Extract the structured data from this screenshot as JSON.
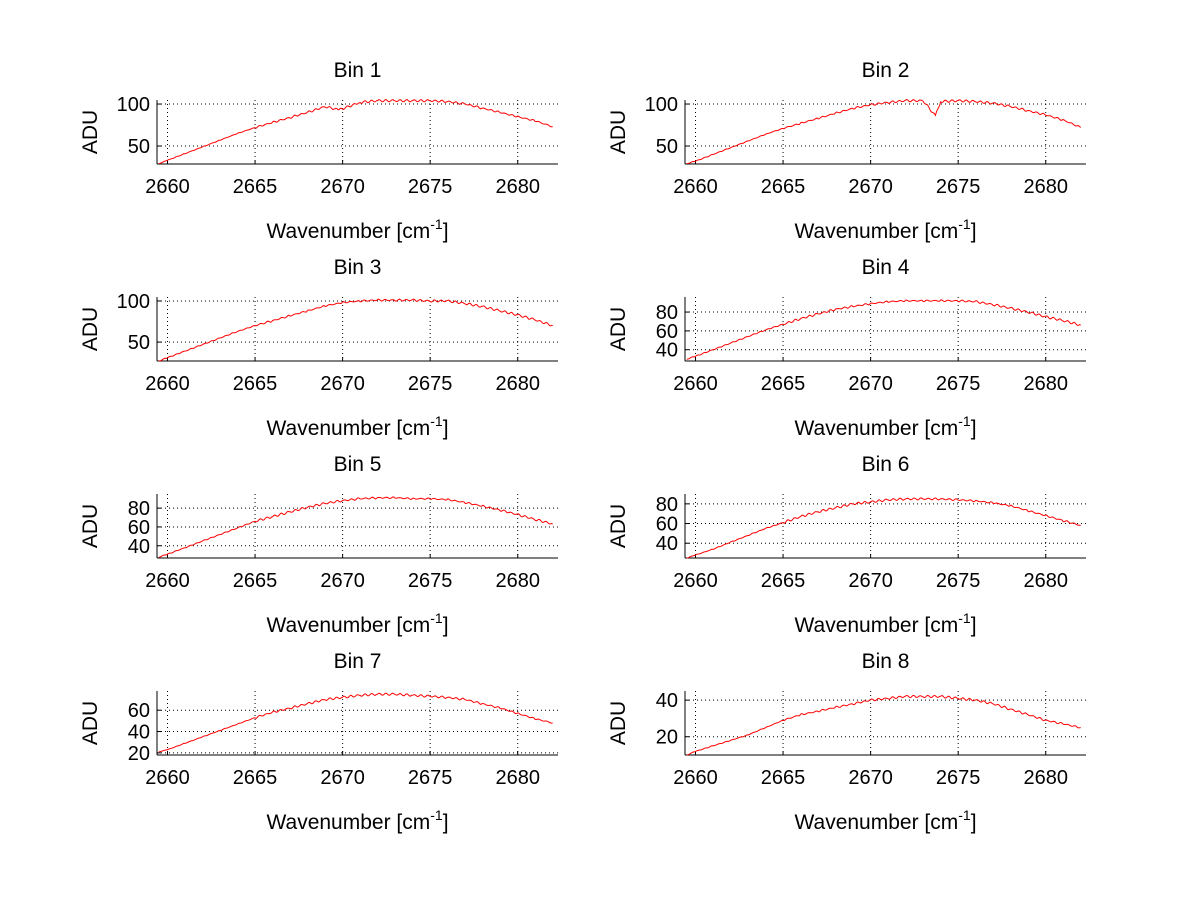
{
  "chart_data": [
    {
      "type": "line",
      "title": "Bin 1",
      "xlabel": "Wavenumber [cm",
      "xlabel_sup": "-1",
      "xlabel_end": "]",
      "ylabel": "ADU",
      "xlim": [
        2659.4,
        2682.3
      ],
      "ylim": [
        28.6,
        104.8
      ],
      "xticks": [
        2660,
        2665,
        2670,
        2675,
        2680
      ],
      "yticks": [
        50,
        100
      ],
      "grid": true,
      "color": "#ff0000",
      "x": [
        2659.5,
        2660,
        2661,
        2662,
        2663,
        2664,
        2665,
        2666,
        2667,
        2668,
        2669,
        2669.8,
        2671,
        2672,
        2673,
        2674,
        2675,
        2676,
        2677,
        2678,
        2679,
        2680,
        2681,
        2682
      ],
      "values": [
        29,
        33,
        41,
        49,
        57,
        65,
        72,
        78,
        84,
        90,
        97,
        93,
        102,
        104,
        104,
        104,
        104,
        103,
        100,
        95,
        90,
        85,
        80,
        73
      ]
    },
    {
      "type": "line",
      "title": "Bin 2",
      "xlabel": "Wavenumber [cm",
      "xlabel_sup": "-1",
      "xlabel_end": "]",
      "ylabel": "ADU",
      "xlim": [
        2659.4,
        2682.3
      ],
      "ylim": [
        28.6,
        104.8
      ],
      "xticks": [
        2660,
        2665,
        2670,
        2675,
        2680
      ],
      "yticks": [
        50,
        100
      ],
      "grid": true,
      "color": "#ff0000",
      "x": [
        2659.5,
        2660,
        2661,
        2662,
        2663,
        2664,
        2665,
        2666,
        2667,
        2668,
        2669,
        2670,
        2671,
        2672,
        2673,
        2673.7,
        2674,
        2675,
        2676,
        2677,
        2678,
        2679,
        2680,
        2681,
        2682
      ],
      "values": [
        29,
        32,
        40,
        48,
        56,
        64,
        71,
        77,
        83,
        89,
        95,
        99,
        102,
        104,
        104,
        86,
        103,
        104,
        103,
        101,
        97,
        92,
        87,
        81,
        72
      ]
    },
    {
      "type": "line",
      "title": "Bin 3",
      "xlabel": "Wavenumber [cm",
      "xlabel_sup": "-1",
      "xlabel_end": "]",
      "ylabel": "ADU",
      "xlim": [
        2659.4,
        2682.3
      ],
      "ylim": [
        27,
        104.8
      ],
      "xticks": [
        2660,
        2665,
        2670,
        2675,
        2680
      ],
      "yticks": [
        50,
        100
      ],
      "grid": true,
      "color": "#ff0000",
      "x": [
        2659.5,
        2660,
        2661,
        2662,
        2663,
        2664,
        2665,
        2666,
        2667,
        2668,
        2669,
        2670,
        2671,
        2672,
        2673,
        2674,
        2675,
        2676,
        2677,
        2678,
        2679,
        2680,
        2681,
        2682
      ],
      "values": [
        27,
        31,
        39,
        47,
        55,
        63,
        70,
        76,
        82,
        88,
        94,
        98,
        100,
        101,
        101,
        101,
        100,
        100,
        97,
        93,
        88,
        83,
        77,
        70
      ]
    },
    {
      "type": "line",
      "title": "Bin 4",
      "xlabel": "Wavenumber [cm",
      "xlabel_sup": "-1",
      "xlabel_end": "]",
      "ylabel": "ADU",
      "xlim": [
        2659.4,
        2682.3
      ],
      "ylim": [
        28,
        96
      ],
      "xticks": [
        2660,
        2665,
        2670,
        2675,
        2680
      ],
      "yticks": [
        40,
        60,
        80
      ],
      "grid": true,
      "color": "#ff0000",
      "x": [
        2659.5,
        2660,
        2661,
        2662,
        2663,
        2664,
        2665,
        2666,
        2667,
        2668,
        2669,
        2670,
        2671,
        2672,
        2673,
        2674,
        2675,
        2676,
        2677,
        2678,
        2679,
        2680,
        2681,
        2682
      ],
      "values": [
        30,
        33,
        40,
        47,
        54,
        61,
        67,
        73,
        78,
        83,
        86,
        89,
        91,
        92,
        92,
        92,
        92,
        91,
        88,
        84,
        80,
        75,
        71,
        66
      ]
    },
    {
      "type": "line",
      "title": "Bin 5",
      "xlabel": "Wavenumber [cm",
      "xlabel_sup": "-1",
      "xlabel_end": "]",
      "ylabel": "ADU",
      "xlim": [
        2659.4,
        2682.3
      ],
      "ylim": [
        27,
        95
      ],
      "xticks": [
        2660,
        2665,
        2670,
        2675,
        2680
      ],
      "yticks": [
        40,
        60,
        80
      ],
      "grid": true,
      "color": "#ff0000",
      "x": [
        2659.5,
        2660,
        2661,
        2662,
        2663,
        2664,
        2665,
        2666,
        2667,
        2668,
        2669,
        2670,
        2671,
        2672,
        2673,
        2674,
        2675,
        2676,
        2677,
        2678,
        2679,
        2680,
        2681,
        2682
      ],
      "values": [
        28,
        31,
        38,
        45,
        52,
        59,
        66,
        71,
        76,
        81,
        85,
        88,
        90,
        91,
        91,
        90,
        90,
        89,
        86,
        82,
        78,
        73,
        68,
        63
      ]
    },
    {
      "type": "line",
      "title": "Bin 6",
      "xlabel": "Wavenumber [cm",
      "xlabel_sup": "-1",
      "xlabel_end": "]",
      "ylabel": "ADU",
      "xlim": [
        2659.4,
        2682.3
      ],
      "ylim": [
        25,
        90
      ],
      "xticks": [
        2660,
        2665,
        2670,
        2675,
        2680
      ],
      "yticks": [
        40,
        60,
        80
      ],
      "grid": true,
      "color": "#ff0000",
      "x": [
        2659.5,
        2660,
        2661,
        2662,
        2663,
        2664,
        2665,
        2666,
        2667,
        2668,
        2669,
        2670,
        2671,
        2672,
        2673,
        2674,
        2675,
        2676,
        2677,
        2678,
        2679,
        2680,
        2681,
        2682
      ],
      "values": [
        25,
        28,
        34,
        41,
        48,
        55,
        61,
        67,
        72,
        76,
        80,
        82,
        84,
        85,
        85,
        85,
        84,
        83,
        81,
        78,
        73,
        68,
        63,
        58
      ]
    },
    {
      "type": "line",
      "title": "Bin 7",
      "xlabel": "Wavenumber [cm",
      "xlabel_sup": "-1",
      "xlabel_end": "]",
      "ylabel": "ADU",
      "xlim": [
        2659.4,
        2682.3
      ],
      "ylim": [
        18,
        78
      ],
      "xticks": [
        2660,
        2665,
        2670,
        2675,
        2680
      ],
      "yticks": [
        20,
        40,
        60
      ],
      "grid": true,
      "color": "#ff0000",
      "x": [
        2659.5,
        2660,
        2661,
        2662,
        2663,
        2664,
        2665,
        2666,
        2667,
        2668,
        2669,
        2670,
        2671,
        2672,
        2673,
        2674,
        2675,
        2676,
        2677,
        2678,
        2679,
        2680,
        2681,
        2682
      ],
      "values": [
        21,
        23,
        29,
        35,
        41,
        47,
        53,
        58,
        62,
        66,
        70,
        72,
        74,
        75,
        75,
        74,
        73,
        72,
        70,
        66,
        62,
        57,
        52,
        48
      ]
    },
    {
      "type": "line",
      "title": "Bin 8",
      "xlabel": "Wavenumber [cm",
      "xlabel_sup": "-1",
      "xlabel_end": "]",
      "ylabel": "ADU",
      "xlim": [
        2659.4,
        2682.3
      ],
      "ylim": [
        10,
        45
      ],
      "xticks": [
        2660,
        2665,
        2670,
        2675,
        2680
      ],
      "yticks": [
        20,
        40
      ],
      "grid": true,
      "color": "#ff0000",
      "x": [
        2659.5,
        2660,
        2661,
        2662,
        2663,
        2664,
        2665,
        2666,
        2667,
        2668,
        2669,
        2670,
        2671,
        2672,
        2673,
        2674,
        2675,
        2676,
        2677,
        2678,
        2679,
        2680,
        2681,
        2682
      ],
      "values": [
        10,
        12,
        15,
        18,
        21,
        25,
        29,
        32,
        34,
        36,
        38,
        40,
        41,
        42,
        42,
        42,
        41,
        40,
        38,
        35,
        32,
        29,
        27,
        25
      ]
    }
  ]
}
